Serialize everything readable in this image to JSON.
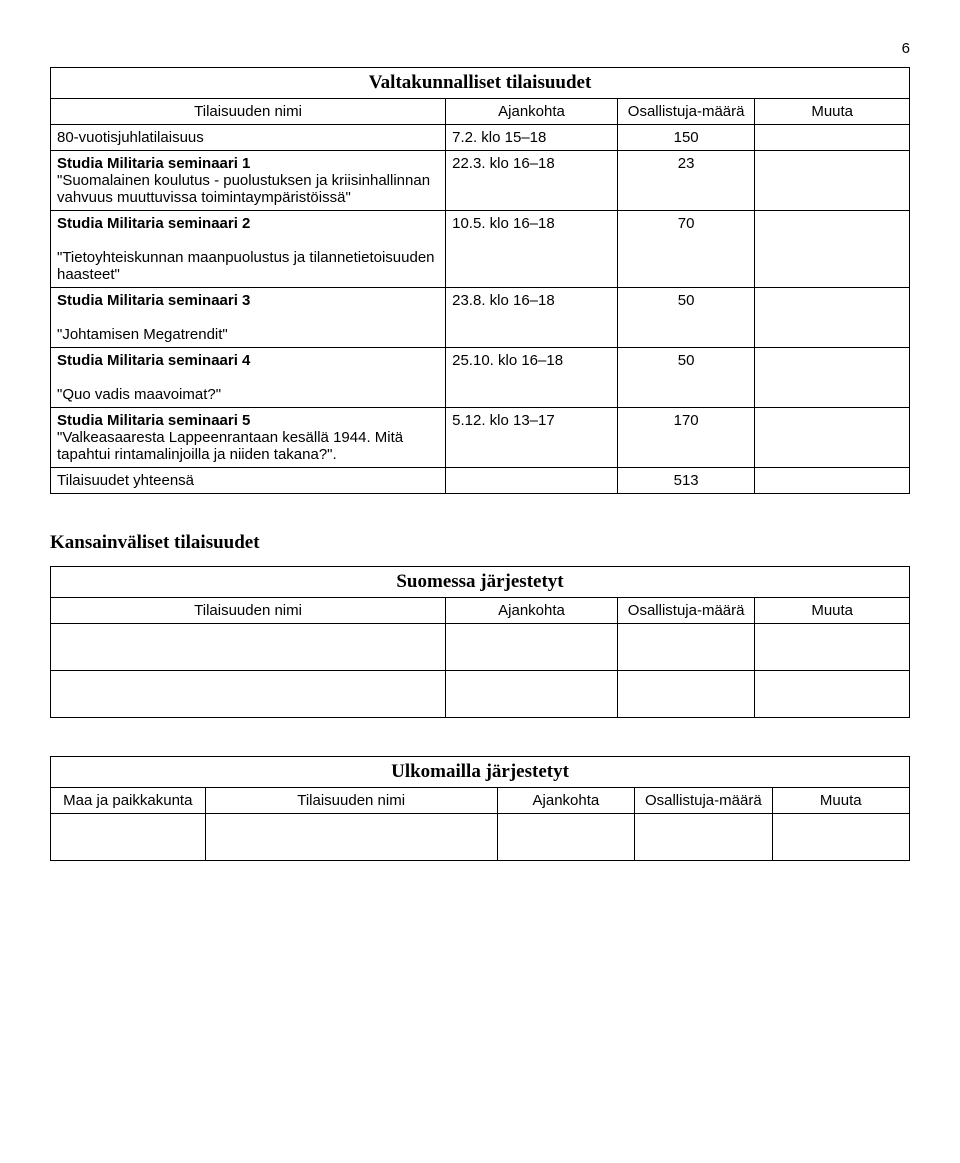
{
  "page_number": "6",
  "table1": {
    "title": "Valtakunnalliset tilaisuudet",
    "headers": {
      "name": "Tilaisuuden nimi",
      "time": "Ajankohta",
      "count": "Osallistuja-määrä",
      "note": "Muuta"
    },
    "rows": [
      {
        "name": "80-vuotisjuhlatilaisuus",
        "time": "7.2. klo 15–18",
        "count": "150",
        "note": ""
      },
      {
        "name": "Studia Militaria seminaari 1\n\"Suomalainen koulutus - puolustuksen ja kriisinhallinnan vahvuus muuttuvissa toimintaympäristöissä\"",
        "time": "22.3. klo 16–18",
        "count": "23",
        "note": ""
      },
      {
        "name": "Studia Militaria seminaari 2\n\n\"Tietoyhteiskunnan maanpuolustus ja tilannetietoisuuden haasteet\"",
        "time": "10.5. klo 16–18",
        "count": "70",
        "note": ""
      },
      {
        "name": "Studia Militaria seminaari 3\n\n\"Johtamisen Megatrendit\"",
        "time": "23.8. klo 16–18",
        "count": "50",
        "note": ""
      },
      {
        "name": "Studia Militaria seminaari 4\n\n\"Quo vadis maavoimat?\"",
        "time": "25.10. klo 16–18",
        "count": "50",
        "note": ""
      },
      {
        "name": "Studia Militaria seminaari 5\n\"Valkeasaaresta Lappeenrantaan kesällä 1944. Mitä tapahtui rintamalinjoilla ja niiden takana?\".",
        "time": "5.12. klo 13–17",
        "count": "170",
        "note": ""
      }
    ],
    "total_label": "Tilaisuudet yhteensä",
    "total_value": "513"
  },
  "section2_heading": "Kansainväliset tilaisuudet",
  "table2": {
    "title": "Suomessa järjestetyt",
    "headers": {
      "name": "Tilaisuuden nimi",
      "time": "Ajankohta",
      "count": "Osallistuja-määrä",
      "note": "Muuta"
    }
  },
  "table3": {
    "title": "Ulkomailla järjestetyt",
    "headers": {
      "country": "Maa ja paikkakunta",
      "name": "Tilaisuuden nimi",
      "time": "Ajankohta",
      "count": "Osallistuja-määrä",
      "note": "Muuta"
    }
  }
}
